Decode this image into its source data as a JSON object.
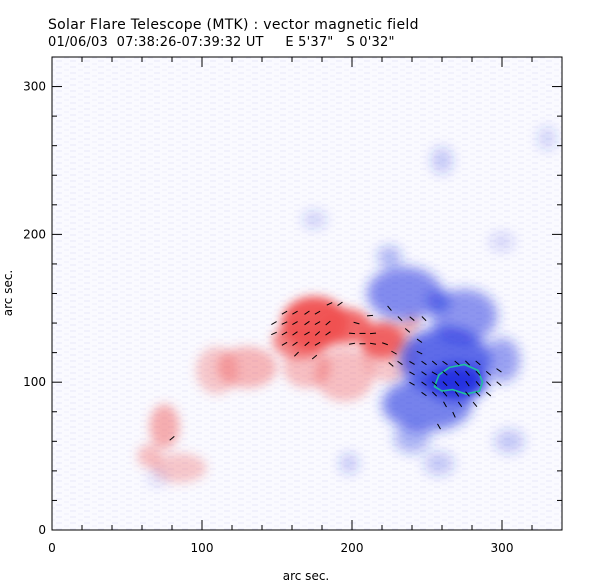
{
  "header": {
    "title": "Solar Flare Telescope (MTK) : vector magnetic field",
    "subtitle": "01/06/03  07:38:26-07:39:32 UT     E 5'37\"   S 0'32\""
  },
  "chart_data": {
    "type": "heatmap",
    "title": "Solar Flare Telescope (MTK) : vector magnetic field",
    "subtitle": "01/06/03  07:38:26-07:39:32 UT     E 5'37\"   S 0'32\"",
    "xlabel": "arc sec.",
    "ylabel": "arc sec.",
    "xlim": [
      0,
      340
    ],
    "ylim": [
      0,
      320
    ],
    "xticks": [
      0,
      100,
      200,
      300
    ],
    "yticks": [
      0,
      100,
      200,
      300
    ],
    "colors": {
      "positive": "#f05050",
      "negative": "#2030e0",
      "contour": "#20c0a0",
      "vectors": "#000000"
    },
    "positive_regions": [
      {
        "cx": 175,
        "cy": 140,
        "rx": 22,
        "ry": 18,
        "v": 0.95
      },
      {
        "cx": 195,
        "cy": 138,
        "rx": 18,
        "ry": 12,
        "v": 0.85
      },
      {
        "cx": 220,
        "cy": 128,
        "rx": 15,
        "ry": 12,
        "v": 0.85
      },
      {
        "cx": 165,
        "cy": 128,
        "rx": 18,
        "ry": 12,
        "v": 0.7
      },
      {
        "cx": 130,
        "cy": 110,
        "rx": 20,
        "ry": 14,
        "v": 0.4
      },
      {
        "cx": 110,
        "cy": 108,
        "rx": 14,
        "ry": 16,
        "v": 0.3
      },
      {
        "cx": 195,
        "cy": 105,
        "rx": 20,
        "ry": 18,
        "v": 0.35
      },
      {
        "cx": 170,
        "cy": 110,
        "rx": 16,
        "ry": 14,
        "v": 0.35
      },
      {
        "cx": 75,
        "cy": 70,
        "rx": 10,
        "ry": 15,
        "v": 0.45
      },
      {
        "cx": 85,
        "cy": 42,
        "rx": 18,
        "ry": 10,
        "v": 0.3
      },
      {
        "cx": 65,
        "cy": 50,
        "rx": 8,
        "ry": 8,
        "v": 0.35
      },
      {
        "cx": 225,
        "cy": 122,
        "rx": 18,
        "ry": 22,
        "v": 0.3
      },
      {
        "cx": 240,
        "cy": 140,
        "rx": 6,
        "ry": 6,
        "v": 0.4
      }
    ],
    "negative_regions": [
      {
        "cx": 270,
        "cy": 100,
        "rx": 20,
        "ry": 12,
        "v": 0.95
      },
      {
        "cx": 262,
        "cy": 115,
        "rx": 30,
        "ry": 22,
        "v": 0.7
      },
      {
        "cx": 250,
        "cy": 85,
        "rx": 30,
        "ry": 18,
        "v": 0.6
      },
      {
        "cx": 235,
        "cy": 160,
        "rx": 25,
        "ry": 18,
        "v": 0.55
      },
      {
        "cx": 275,
        "cy": 145,
        "rx": 22,
        "ry": 18,
        "v": 0.5
      },
      {
        "cx": 225,
        "cy": 185,
        "rx": 8,
        "ry": 7,
        "v": 0.35
      },
      {
        "cx": 300,
        "cy": 115,
        "rx": 12,
        "ry": 15,
        "v": 0.45
      },
      {
        "cx": 240,
        "cy": 62,
        "rx": 12,
        "ry": 10,
        "v": 0.35
      },
      {
        "cx": 258,
        "cy": 155,
        "rx": 8,
        "ry": 8,
        "v": 0.45
      },
      {
        "cx": 198,
        "cy": 45,
        "rx": 6,
        "ry": 7,
        "v": 0.25
      },
      {
        "cx": 258,
        "cy": 45,
        "rx": 10,
        "ry": 8,
        "v": 0.25
      },
      {
        "cx": 305,
        "cy": 60,
        "rx": 10,
        "ry": 8,
        "v": 0.25
      },
      {
        "cx": 260,
        "cy": 250,
        "rx": 7,
        "ry": 9,
        "v": 0.25
      },
      {
        "cx": 175,
        "cy": 210,
        "rx": 8,
        "ry": 6,
        "v": 0.2
      },
      {
        "cx": 300,
        "cy": 195,
        "rx": 8,
        "ry": 6,
        "v": 0.18
      },
      {
        "cx": 330,
        "cy": 265,
        "rx": 6,
        "ry": 8,
        "v": 0.2
      },
      {
        "cx": 70,
        "cy": 35,
        "rx": 6,
        "ry": 5,
        "v": 0.15
      }
    ],
    "contour": [
      [
        255,
        97
      ],
      [
        258,
        105
      ],
      [
        265,
        110
      ],
      [
        275,
        112
      ],
      [
        284,
        108
      ],
      [
        287,
        100
      ],
      [
        285,
        94
      ],
      [
        276,
        92
      ],
      [
        267,
        95
      ],
      [
        260,
        94
      ]
    ],
    "vectors": [
      {
        "x": 148,
        "y": 140,
        "a": 30
      },
      {
        "x": 155,
        "y": 140,
        "a": 25
      },
      {
        "x": 162,
        "y": 140,
        "a": 30
      },
      {
        "x": 170,
        "y": 140,
        "a": 35
      },
      {
        "x": 177,
        "y": 140,
        "a": 30
      },
      {
        "x": 184,
        "y": 140,
        "a": 40
      },
      {
        "x": 148,
        "y": 133,
        "a": 25
      },
      {
        "x": 155,
        "y": 133,
        "a": 30
      },
      {
        "x": 162,
        "y": 133,
        "a": 35
      },
      {
        "x": 170,
        "y": 133,
        "a": 30
      },
      {
        "x": 177,
        "y": 133,
        "a": 40
      },
      {
        "x": 184,
        "y": 133,
        "a": 35
      },
      {
        "x": 155,
        "y": 126,
        "a": 30
      },
      {
        "x": 162,
        "y": 126,
        "a": 35
      },
      {
        "x": 170,
        "y": 126,
        "a": 40
      },
      {
        "x": 177,
        "y": 126,
        "a": 30
      },
      {
        "x": 155,
        "y": 147,
        "a": 30
      },
      {
        "x": 162,
        "y": 147,
        "a": 30
      },
      {
        "x": 170,
        "y": 147,
        "a": 35
      },
      {
        "x": 177,
        "y": 147,
        "a": 30
      },
      {
        "x": 185,
        "y": 153,
        "a": 25
      },
      {
        "x": 192,
        "y": 153,
        "a": 35
      },
      {
        "x": 163,
        "y": 119,
        "a": 45
      },
      {
        "x": 175,
        "y": 117,
        "a": 40
      },
      {
        "x": 200,
        "y": 133,
        "a": -5
      },
      {
        "x": 207,
        "y": 133,
        "a": 0
      },
      {
        "x": 214,
        "y": 133,
        "a": 5
      },
      {
        "x": 200,
        "y": 126,
        "a": 10
      },
      {
        "x": 207,
        "y": 126,
        "a": 0
      },
      {
        "x": 214,
        "y": 126,
        "a": -10
      },
      {
        "x": 203,
        "y": 140,
        "a": -15
      },
      {
        "x": 212,
        "y": 145,
        "a": 5
      },
      {
        "x": 222,
        "y": 126,
        "a": -20
      },
      {
        "x": 228,
        "y": 120,
        "a": -30
      },
      {
        "x": 232,
        "y": 143,
        "a": -45
      },
      {
        "x": 225,
        "y": 150,
        "a": -50
      },
      {
        "x": 240,
        "y": 143,
        "a": -40
      },
      {
        "x": 248,
        "y": 143,
        "a": -45
      },
      {
        "x": 237,
        "y": 135,
        "a": -40
      },
      {
        "x": 245,
        "y": 128,
        "a": -35
      },
      {
        "x": 232,
        "y": 113,
        "a": -35
      },
      {
        "x": 240,
        "y": 113,
        "a": -30
      },
      {
        "x": 248,
        "y": 113,
        "a": -35
      },
      {
        "x": 255,
        "y": 113,
        "a": -40
      },
      {
        "x": 262,
        "y": 113,
        "a": -35
      },
      {
        "x": 270,
        "y": 113,
        "a": -40
      },
      {
        "x": 277,
        "y": 113,
        "a": -45
      },
      {
        "x": 284,
        "y": 113,
        "a": -40
      },
      {
        "x": 240,
        "y": 106,
        "a": -30
      },
      {
        "x": 248,
        "y": 106,
        "a": -35
      },
      {
        "x": 255,
        "y": 106,
        "a": -30
      },
      {
        "x": 262,
        "y": 106,
        "a": -40
      },
      {
        "x": 270,
        "y": 106,
        "a": -45
      },
      {
        "x": 277,
        "y": 106,
        "a": -50
      },
      {
        "x": 284,
        "y": 106,
        "a": -45
      },
      {
        "x": 291,
        "y": 106,
        "a": -40
      },
      {
        "x": 240,
        "y": 99,
        "a": -30
      },
      {
        "x": 248,
        "y": 99,
        "a": -35
      },
      {
        "x": 255,
        "y": 99,
        "a": -40
      },
      {
        "x": 262,
        "y": 99,
        "a": -45
      },
      {
        "x": 270,
        "y": 99,
        "a": -50
      },
      {
        "x": 277,
        "y": 99,
        "a": -55
      },
      {
        "x": 284,
        "y": 99,
        "a": -50
      },
      {
        "x": 291,
        "y": 99,
        "a": -45
      },
      {
        "x": 298,
        "y": 99,
        "a": -40
      },
      {
        "x": 248,
        "y": 92,
        "a": -35
      },
      {
        "x": 255,
        "y": 92,
        "a": -45
      },
      {
        "x": 262,
        "y": 92,
        "a": -50
      },
      {
        "x": 270,
        "y": 92,
        "a": -55
      },
      {
        "x": 277,
        "y": 92,
        "a": -50
      },
      {
        "x": 284,
        "y": 92,
        "a": -45
      },
      {
        "x": 291,
        "y": 92,
        "a": -40
      },
      {
        "x": 262,
        "y": 85,
        "a": -60
      },
      {
        "x": 272,
        "y": 85,
        "a": -55
      },
      {
        "x": 282,
        "y": 85,
        "a": -50
      },
      {
        "x": 268,
        "y": 78,
        "a": -65
      },
      {
        "x": 258,
        "y": 70,
        "a": -60
      },
      {
        "x": 245,
        "y": 120,
        "a": -25
      },
      {
        "x": 226,
        "y": 112,
        "a": -40
      },
      {
        "x": 80,
        "y": 62,
        "a": 40
      },
      {
        "x": 298,
        "y": 108,
        "a": -35
      }
    ]
  }
}
